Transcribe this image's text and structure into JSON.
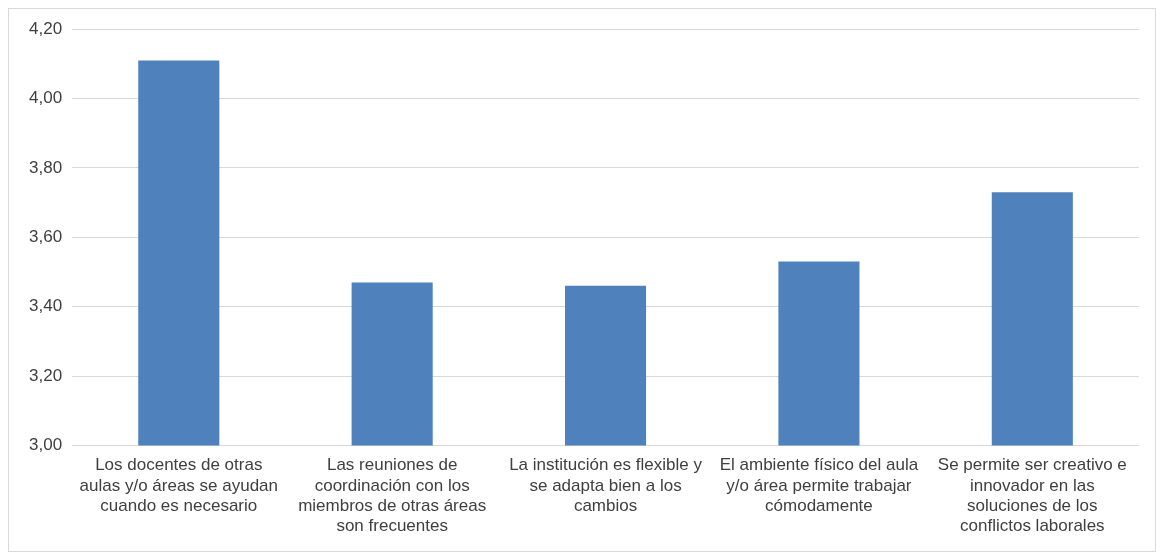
{
  "chart_data": {
    "type": "bar",
    "categories": [
      "Los docentes de otras aulas y/o áreas se ayudan cuando es necesario",
      "Las reuniones de coordinación con los miembros de otras áreas son frecuentes",
      "La institución es flexible y se adapta bien a los cambios",
      "El ambiente físico del aula y/o área permite trabajar cómodamente",
      "Se permite ser creativo e innovador en las soluciones de los conflictos laborales"
    ],
    "values": [
      4.11,
      3.47,
      3.46,
      3.53,
      3.73
    ],
    "color": "#4f81bd",
    "ylim": [
      3,
      4.2
    ],
    "yticks": [
      {
        "value": 3,
        "label": "3,00"
      },
      {
        "value": 3.2,
        "label": "3,20"
      },
      {
        "value": 3.4,
        "label": "3,40"
      },
      {
        "value": 3.6,
        "label": "3,60"
      },
      {
        "value": 3.8,
        "label": "3,80"
      },
      {
        "value": 4,
        "label": "4,00"
      },
      {
        "value": 4.2,
        "label": "4,20"
      }
    ],
    "grid": "y",
    "legend": false
  }
}
